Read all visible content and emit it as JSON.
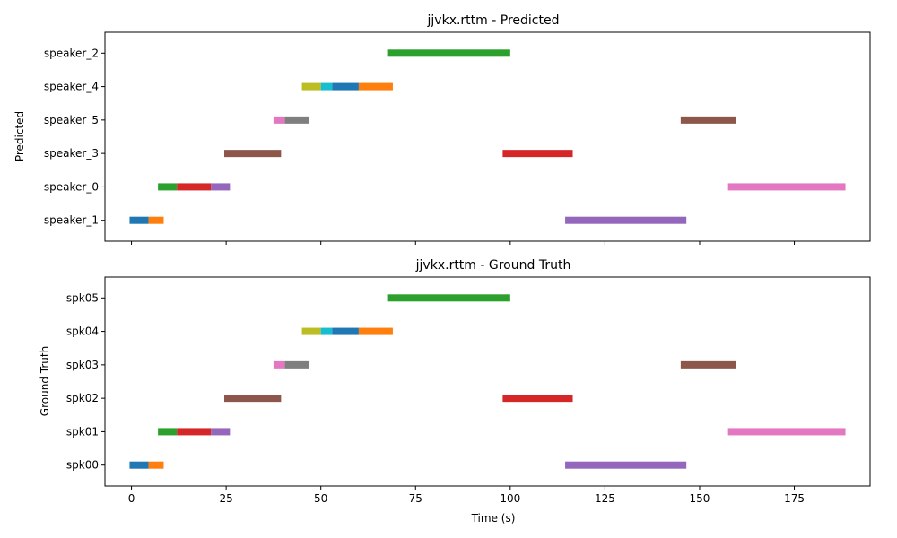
{
  "chart_data": [
    {
      "type": "timeline",
      "title": "jjvkx.rttm - Predicted",
      "xlabel": "",
      "ylabel": "Predicted",
      "xlim": [
        -7,
        195
      ],
      "speakers": [
        "speaker_1",
        "speaker_0",
        "speaker_3",
        "speaker_5",
        "speaker_4",
        "speaker_2"
      ],
      "segments": [
        {
          "speaker": "speaker_1",
          "start": -0.5,
          "end": 4.5,
          "color": "#1f77b4"
        },
        {
          "speaker": "speaker_1",
          "start": 4.5,
          "end": 8.5,
          "color": "#ff7f0e"
        },
        {
          "speaker": "speaker_1",
          "start": 114.5,
          "end": 146.5,
          "color": "#9467bd"
        },
        {
          "speaker": "speaker_0",
          "start": 7,
          "end": 12,
          "color": "#2ca02c"
        },
        {
          "speaker": "speaker_0",
          "start": 12,
          "end": 21,
          "color": "#d62728"
        },
        {
          "speaker": "speaker_0",
          "start": 21,
          "end": 26,
          "color": "#9467bd"
        },
        {
          "speaker": "speaker_0",
          "start": 157.5,
          "end": 188.5,
          "color": "#e377c2"
        },
        {
          "speaker": "speaker_3",
          "start": 24.5,
          "end": 39.5,
          "color": "#8c564b"
        },
        {
          "speaker": "speaker_3",
          "start": 98,
          "end": 116.5,
          "color": "#d62728"
        },
        {
          "speaker": "speaker_5",
          "start": 37.5,
          "end": 40.5,
          "color": "#e377c2"
        },
        {
          "speaker": "speaker_5",
          "start": 40.5,
          "end": 47,
          "color": "#7f7f7f"
        },
        {
          "speaker": "speaker_5",
          "start": 145,
          "end": 159.5,
          "color": "#8c564b"
        },
        {
          "speaker": "speaker_4",
          "start": 45,
          "end": 50,
          "color": "#bcbd22"
        },
        {
          "speaker": "speaker_4",
          "start": 50,
          "end": 53,
          "color": "#17becf"
        },
        {
          "speaker": "speaker_4",
          "start": 53,
          "end": 60,
          "color": "#1f77b4"
        },
        {
          "speaker": "speaker_4",
          "start": 60,
          "end": 69,
          "color": "#ff7f0e"
        },
        {
          "speaker": "speaker_2",
          "start": 67.5,
          "end": 100,
          "color": "#2ca02c"
        }
      ]
    },
    {
      "type": "timeline",
      "title": "jjvkx.rttm - Ground Truth",
      "xlabel": "Time (s)",
      "ylabel": "Ground Truth",
      "xlim": [
        -7,
        195
      ],
      "xticks": [
        0,
        25,
        50,
        75,
        100,
        125,
        150,
        175
      ],
      "speakers": [
        "spk00",
        "spk01",
        "spk02",
        "spk03",
        "spk04",
        "spk05"
      ],
      "segments": [
        {
          "speaker": "spk00",
          "start": -0.5,
          "end": 4.5,
          "color": "#1f77b4"
        },
        {
          "speaker": "spk00",
          "start": 4.5,
          "end": 8.5,
          "color": "#ff7f0e"
        },
        {
          "speaker": "spk00",
          "start": 114.5,
          "end": 146.5,
          "color": "#9467bd"
        },
        {
          "speaker": "spk01",
          "start": 7,
          "end": 12,
          "color": "#2ca02c"
        },
        {
          "speaker": "spk01",
          "start": 12,
          "end": 21,
          "color": "#d62728"
        },
        {
          "speaker": "spk01",
          "start": 21,
          "end": 26,
          "color": "#9467bd"
        },
        {
          "speaker": "spk01",
          "start": 157.5,
          "end": 188.5,
          "color": "#e377c2"
        },
        {
          "speaker": "spk02",
          "start": 24.5,
          "end": 39.5,
          "color": "#8c564b"
        },
        {
          "speaker": "spk02",
          "start": 98,
          "end": 116.5,
          "color": "#d62728"
        },
        {
          "speaker": "spk03",
          "start": 37.5,
          "end": 40.5,
          "color": "#e377c2"
        },
        {
          "speaker": "spk03",
          "start": 40.5,
          "end": 47,
          "color": "#7f7f7f"
        },
        {
          "speaker": "spk03",
          "start": 145,
          "end": 159.5,
          "color": "#8c564b"
        },
        {
          "speaker": "spk04",
          "start": 45,
          "end": 50,
          "color": "#bcbd22"
        },
        {
          "speaker": "spk04",
          "start": 50,
          "end": 53,
          "color": "#17becf"
        },
        {
          "speaker": "spk04",
          "start": 53,
          "end": 60,
          "color": "#1f77b4"
        },
        {
          "speaker": "spk04",
          "start": 60,
          "end": 69,
          "color": "#ff7f0e"
        },
        {
          "speaker": "spk05",
          "start": 67.5,
          "end": 100,
          "color": "#2ca02c"
        }
      ]
    }
  ]
}
